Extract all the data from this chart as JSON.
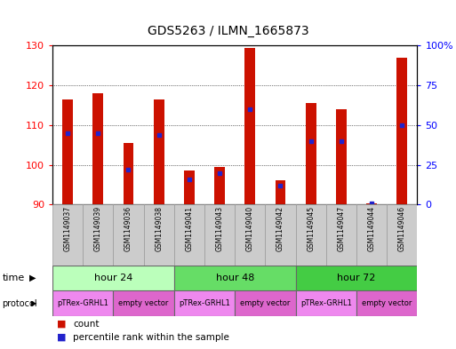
{
  "title": "GDS5263 / ILMN_1665873",
  "samples": [
    "GSM1149037",
    "GSM1149039",
    "GSM1149036",
    "GSM1149038",
    "GSM1149041",
    "GSM1149043",
    "GSM1149040",
    "GSM1149042",
    "GSM1149045",
    "GSM1149047",
    "GSM1149044",
    "GSM1149046"
  ],
  "counts": [
    116.5,
    118.0,
    105.5,
    116.5,
    98.5,
    99.5,
    129.5,
    96.0,
    115.5,
    114.0,
    90.2,
    127.0
  ],
  "percentile_ranks": [
    45,
    45,
    22,
    44,
    16,
    20,
    60,
    12,
    40,
    40,
    1,
    50
  ],
  "ylim_left": [
    90,
    130
  ],
  "ylim_right": [
    0,
    100
  ],
  "yticks_left": [
    90,
    100,
    110,
    120,
    130
  ],
  "yticks_right": [
    0,
    25,
    50,
    75,
    100
  ],
  "bar_color": "#cc1100",
  "marker_color": "#2222cc",
  "bar_bottom": 90,
  "time_groups": [
    {
      "label": "hour 24",
      "start": 0,
      "end": 4,
      "color": "#bbffbb"
    },
    {
      "label": "hour 48",
      "start": 4,
      "end": 8,
      "color": "#66dd66"
    },
    {
      "label": "hour 72",
      "start": 8,
      "end": 12,
      "color": "#44cc44"
    }
  ],
  "protocol_groups": [
    {
      "label": "pTRex-GRHL1",
      "start": 0,
      "end": 2,
      "color": "#ee88ee"
    },
    {
      "label": "empty vector",
      "start": 2,
      "end": 4,
      "color": "#dd66cc"
    },
    {
      "label": "pTRex-GRHL1",
      "start": 4,
      "end": 6,
      "color": "#ee88ee"
    },
    {
      "label": "empty vector",
      "start": 6,
      "end": 8,
      "color": "#dd66cc"
    },
    {
      "label": "pTRex-GRHL1",
      "start": 8,
      "end": 10,
      "color": "#ee88ee"
    },
    {
      "label": "empty vector",
      "start": 10,
      "end": 12,
      "color": "#dd66cc"
    }
  ],
  "background_color": "#ffffff"
}
